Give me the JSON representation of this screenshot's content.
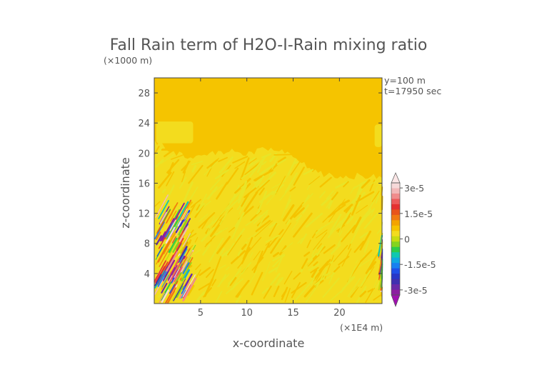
{
  "chart_data": {
    "type": "heatmap",
    "title": "Fall Rain term of H2O-I-Rain mixing ratio",
    "z_scale_label": "(×1000 m)",
    "x_scale_label": "(×1E4 m)",
    "xlabel": "x-coordinate",
    "ylabel": "z-coordinate",
    "info_lines": [
      "y=100  m",
      "t=17950 sec"
    ],
    "xlim": [
      0,
      24.6
    ],
    "ylim": [
      0,
      30
    ],
    "x_ticks": [
      {
        "value": 5,
        "label": "5"
      },
      {
        "value": 10,
        "label": "10"
      },
      {
        "value": 15,
        "label": "15"
      },
      {
        "value": 20,
        "label": "20"
      }
    ],
    "y_ticks": [
      {
        "value": 4,
        "label": "4"
      },
      {
        "value": 8,
        "label": "8"
      },
      {
        "value": 12,
        "label": "12"
      },
      {
        "value": 16,
        "label": "16"
      },
      {
        "value": 20,
        "label": "20"
      },
      {
        "value": 24,
        "label": "24"
      },
      {
        "value": 28,
        "label": "28"
      }
    ],
    "background_value": 0,
    "colorbar": {
      "min": -3.3e-05,
      "max": 3.3e-05,
      "tick_labels": [
        {
          "value": 3e-05,
          "label": "3e-5"
        },
        {
          "value": 1.5e-05,
          "label": "1.5e-5"
        },
        {
          "value": 0,
          "label": "0"
        },
        {
          "value": -1.5e-05,
          "label": "-1.5e-5"
        },
        {
          "value": -3e-05,
          "label": "-3e-5"
        }
      ],
      "colors_top_to_bottom": [
        "#f6d9d9",
        "#f2b8b8",
        "#f08c8c",
        "#ec5a5a",
        "#e53030",
        "#e8541a",
        "#f07a10",
        "#f3a400",
        "#f5c400",
        "#f3dc1e",
        "#c8dc10",
        "#84d420",
        "#2ecc4a",
        "#10c8b0",
        "#10a8e0",
        "#1880f0",
        "#2050e8",
        "#2838c8",
        "#4030b0",
        "#6a2aa8",
        "#8c1ea0"
      ]
    },
    "field_colors": {
      "zero": "#f5c400",
      "light_positive": "#f3dc1e",
      "dense_positive": "#e8e428"
    },
    "cloud_top_profile": [
      [
        0,
        21.5
      ],
      [
        1,
        21.0
      ],
      [
        2,
        20.2
      ],
      [
        3,
        19.8
      ],
      [
        4,
        19.5
      ],
      [
        5,
        19.6
      ],
      [
        6,
        19.9
      ],
      [
        7,
        20.0
      ],
      [
        8,
        20.3
      ],
      [
        9,
        20.0
      ],
      [
        10,
        19.8
      ],
      [
        11,
        20.2
      ],
      [
        12,
        20.6
      ],
      [
        13,
        20.4
      ],
      [
        14,
        20.0
      ],
      [
        15,
        19.5
      ],
      [
        16,
        18.5
      ],
      [
        17,
        17.8
      ],
      [
        18,
        17.3
      ],
      [
        19,
        17.0
      ],
      [
        20,
        16.8
      ],
      [
        21,
        16.8
      ],
      [
        22,
        17.0
      ],
      [
        23,
        17.0
      ],
      [
        24,
        17.0
      ],
      [
        24.6,
        17.0
      ]
    ],
    "upper_patches": [
      {
        "x": [
          0.2,
          4.2
        ],
        "z": [
          21.3,
          24.2
        ]
      },
      {
        "x": [
          23.8,
          24.6
        ],
        "z": [
          20.8,
          23.8
        ]
      }
    ],
    "anomaly_regions": [
      {
        "x": [
          0,
          3.4
        ],
        "z": [
          0,
          11.5
        ]
      },
      {
        "x": [
          24.2,
          24.6
        ],
        "z": [
          1.5,
          6.5
        ]
      }
    ]
  }
}
